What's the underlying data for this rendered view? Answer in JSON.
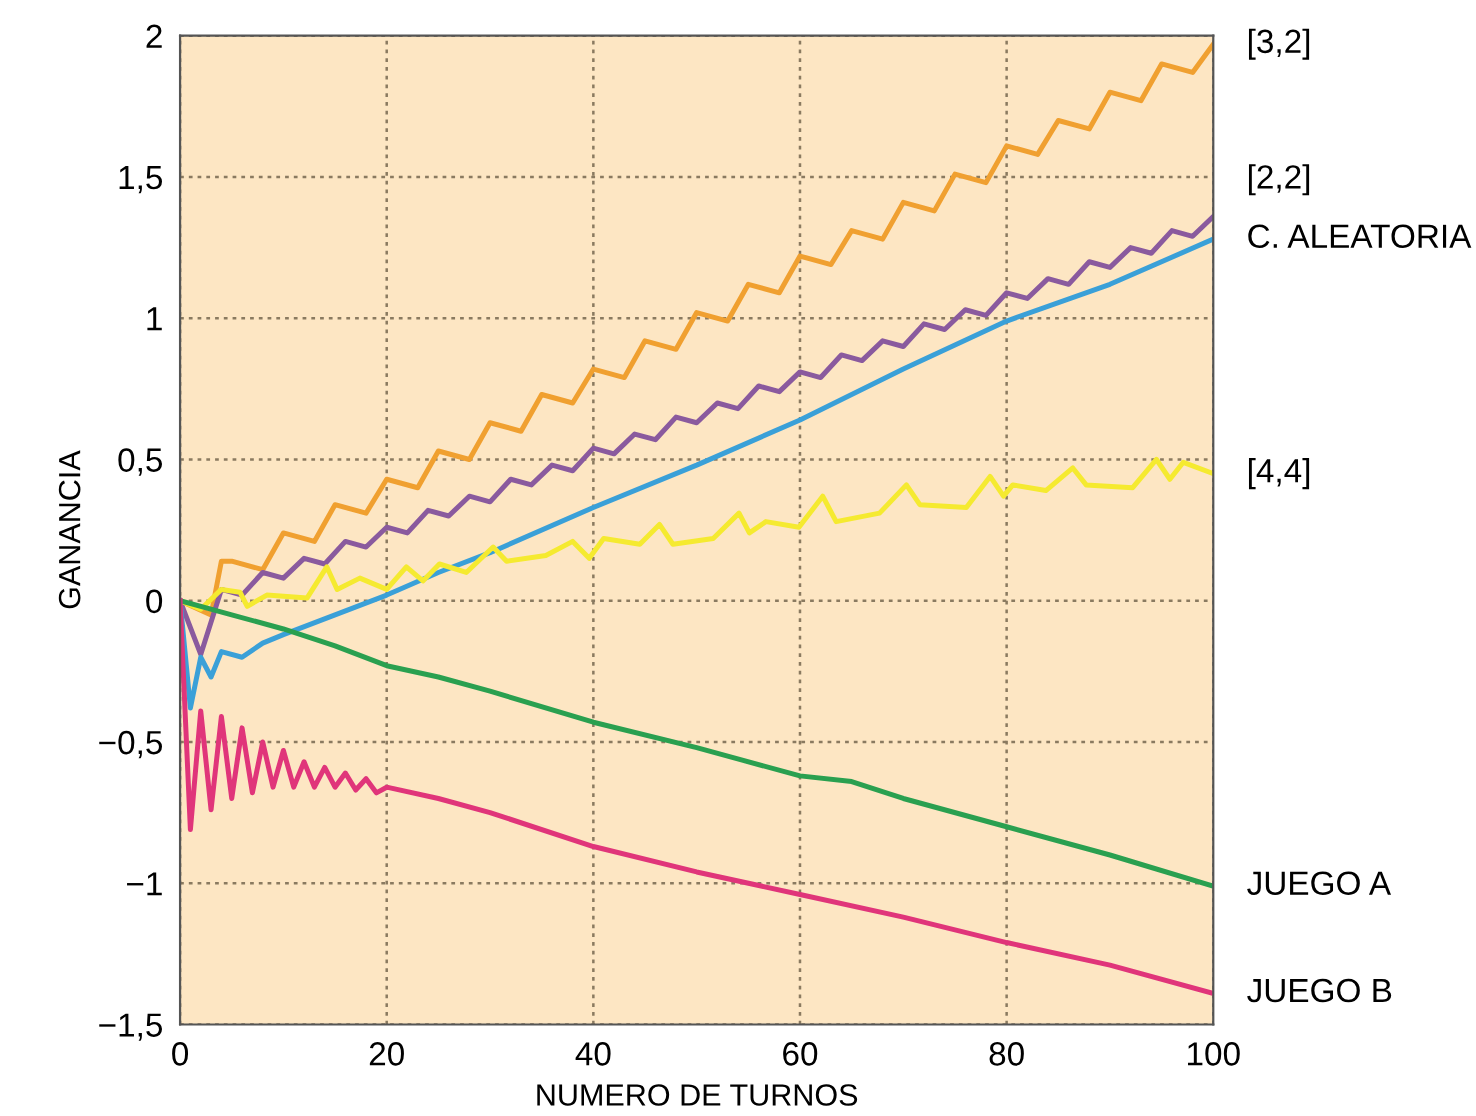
{
  "chart_data": {
    "type": "line",
    "xlabel": "NUMERO DE TURNOS",
    "ylabel": "GANANCIA",
    "xlim": [
      0,
      100
    ],
    "xticks": [
      0,
      20,
      40,
      60,
      80,
      100
    ],
    "ylim": [
      -1.5,
      2
    ],
    "yticks": [
      {
        "value": -1.5,
        "label": "−1,5"
      },
      {
        "value": -1,
        "label": "−1"
      },
      {
        "value": -0.5,
        "label": "−0,5"
      },
      0,
      {
        "value": 0.5,
        "label": "0,5"
      },
      1,
      {
        "value": 1.5,
        "label": "1,5"
      },
      2
    ],
    "grid": true,
    "line_style": "solid",
    "marker": "none",
    "series": [
      {
        "name": "[3,2]",
        "color": "#f0a030",
        "x": [
          0,
          3,
          4,
          5,
          8,
          10,
          13,
          15,
          18,
          20,
          23,
          25,
          28,
          30,
          33,
          35,
          38,
          40,
          43,
          45,
          48,
          50,
          53,
          55,
          58,
          60,
          63,
          65,
          68,
          70,
          73,
          75,
          78,
          80,
          83,
          85,
          88,
          90,
          93,
          95,
          98,
          100
        ],
        "values": [
          0,
          -0.05,
          0.14,
          0.14,
          0.11,
          0.24,
          0.21,
          0.34,
          0.31,
          0.43,
          0.4,
          0.53,
          0.5,
          0.63,
          0.6,
          0.73,
          0.7,
          0.82,
          0.79,
          0.92,
          0.89,
          1.02,
          0.99,
          1.12,
          1.09,
          1.22,
          1.19,
          1.31,
          1.28,
          1.41,
          1.38,
          1.51,
          1.48,
          1.61,
          1.58,
          1.7,
          1.67,
          1.8,
          1.77,
          1.9,
          1.87,
          1.97
        ]
      },
      {
        "name": "[2,2]",
        "color": "#8a5a9e",
        "x": [
          0,
          2,
          4,
          6,
          8,
          10,
          12,
          14,
          16,
          18,
          20,
          22,
          24,
          26,
          28,
          30,
          32,
          34,
          36,
          38,
          40,
          42,
          44,
          46,
          48,
          50,
          52,
          54,
          56,
          58,
          60,
          62,
          64,
          66,
          68,
          70,
          72,
          74,
          76,
          78,
          80,
          82,
          84,
          86,
          88,
          90,
          92,
          94,
          96,
          98,
          100
        ],
        "values": [
          0,
          -0.19,
          0.04,
          0.02,
          0.1,
          0.08,
          0.15,
          0.13,
          0.21,
          0.19,
          0.26,
          0.24,
          0.32,
          0.3,
          0.37,
          0.35,
          0.43,
          0.41,
          0.48,
          0.46,
          0.54,
          0.52,
          0.59,
          0.57,
          0.65,
          0.63,
          0.7,
          0.68,
          0.76,
          0.74,
          0.81,
          0.79,
          0.87,
          0.85,
          0.92,
          0.9,
          0.98,
          0.96,
          1.03,
          1.01,
          1.09,
          1.07,
          1.14,
          1.12,
          1.2,
          1.18,
          1.25,
          1.23,
          1.31,
          1.29,
          1.36
        ]
      },
      {
        "name": "C. ALEATORIA",
        "color": "#3aa0d8",
        "x": [
          0,
          1,
          2,
          3,
          4,
          6,
          8,
          10,
          15,
          20,
          25,
          30,
          40,
          50,
          60,
          70,
          80,
          90,
          100
        ],
        "values": [
          0,
          -0.38,
          -0.2,
          -0.27,
          -0.18,
          -0.2,
          -0.15,
          -0.12,
          -0.05,
          0.02,
          0.1,
          0.17,
          0.33,
          0.48,
          0.64,
          0.82,
          0.99,
          1.12,
          1.28
        ]
      },
      {
        "name": "[4,4]",
        "color": "#f5ea30",
        "x": [
          0,
          2,
          4,
          5.8,
          6.5,
          8.4,
          12.3,
          14.2,
          15.2,
          17.4,
          20,
          21.9,
          23.5,
          25.1,
          27.7,
          30.3,
          31.6,
          35.4,
          38,
          39.6,
          41,
          44.5,
          46.4,
          47.7,
          51.6,
          54.1,
          55.1,
          56.7,
          59.9,
          62.2,
          63.5,
          67.7,
          70.3,
          71.6,
          76.1,
          78.4,
          79.7,
          80.6,
          83.8,
          86.4,
          87.7,
          92.2,
          94.5,
          95.8,
          97.1,
          100
        ],
        "values": [
          0,
          -0.03,
          0.04,
          0.03,
          -0.02,
          0.02,
          0.01,
          0.12,
          0.04,
          0.08,
          0.04,
          0.12,
          0.07,
          0.13,
          0.1,
          0.19,
          0.14,
          0.16,
          0.21,
          0.15,
          0.22,
          0.2,
          0.27,
          0.2,
          0.22,
          0.31,
          0.24,
          0.28,
          0.26,
          0.37,
          0.28,
          0.31,
          0.41,
          0.34,
          0.33,
          0.44,
          0.37,
          0.41,
          0.39,
          0.47,
          0.41,
          0.4,
          0.5,
          0.43,
          0.49,
          0.45
        ]
      },
      {
        "name": "JUEGO A",
        "color": "#2aa050",
        "x": [
          0,
          5,
          10,
          15,
          20,
          25,
          30,
          40,
          50,
          60,
          65,
          70,
          80,
          90,
          100
        ],
        "values": [
          0,
          -0.05,
          -0.1,
          -0.16,
          -0.23,
          -0.27,
          -0.32,
          -0.43,
          -0.52,
          -0.62,
          -0.64,
          -0.7,
          -0.8,
          -0.9,
          -1.01
        ]
      },
      {
        "name": "JUEGO B",
        "color": "#e0357a",
        "x": [
          0,
          1,
          2,
          3,
          4,
          5,
          6,
          7,
          8,
          9,
          10,
          11,
          12,
          13,
          14,
          15,
          16,
          17,
          18,
          19,
          20,
          25,
          30,
          40,
          50,
          60,
          70,
          80,
          90,
          100
        ],
        "values": [
          0,
          -0.81,
          -0.39,
          -0.74,
          -0.41,
          -0.7,
          -0.45,
          -0.68,
          -0.5,
          -0.66,
          -0.53,
          -0.66,
          -0.57,
          -0.66,
          -0.59,
          -0.66,
          -0.61,
          -0.67,
          -0.63,
          -0.68,
          -0.66,
          -0.7,
          -0.75,
          -0.87,
          -0.96,
          -1.04,
          -1.12,
          -1.21,
          -1.29,
          -1.39
        ]
      }
    ]
  }
}
